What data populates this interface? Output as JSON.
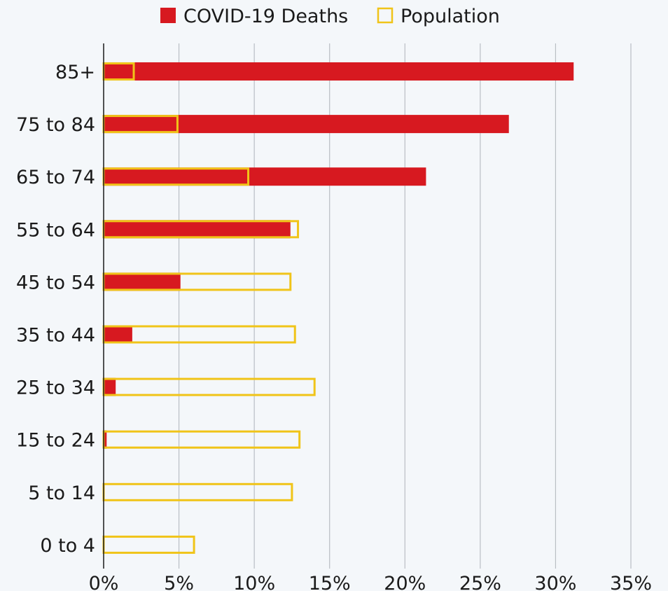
{
  "chart_data": {
    "type": "bar",
    "orientation": "horizontal",
    "categories": [
      "85+",
      "75 to 84",
      "65 to 74",
      "55 to 64",
      "45 to 54",
      "35 to 44",
      "25 to 34",
      "15 to 24",
      "5 to 14",
      "0 to 4"
    ],
    "series": [
      {
        "name": "COVID-19 Deaths",
        "color": "#d71920",
        "style": "filled",
        "values": [
          31.2,
          26.9,
          21.4,
          12.4,
          5.1,
          1.9,
          0.8,
          0.2,
          0.0,
          0.0
        ]
      },
      {
        "name": "Population",
        "color": "#f0c419",
        "style": "outline",
        "values": [
          2.0,
          4.9,
          9.6,
          12.9,
          12.4,
          12.7,
          14.0,
          13.0,
          12.5,
          6.0
        ]
      }
    ],
    "x_ticks": [
      "0%",
      "5%",
      "10%",
      "15%",
      "20%",
      "25%",
      "30%",
      "35%"
    ],
    "xlim": [
      0,
      35
    ],
    "grid": "vertical",
    "legend": "top-center"
  }
}
